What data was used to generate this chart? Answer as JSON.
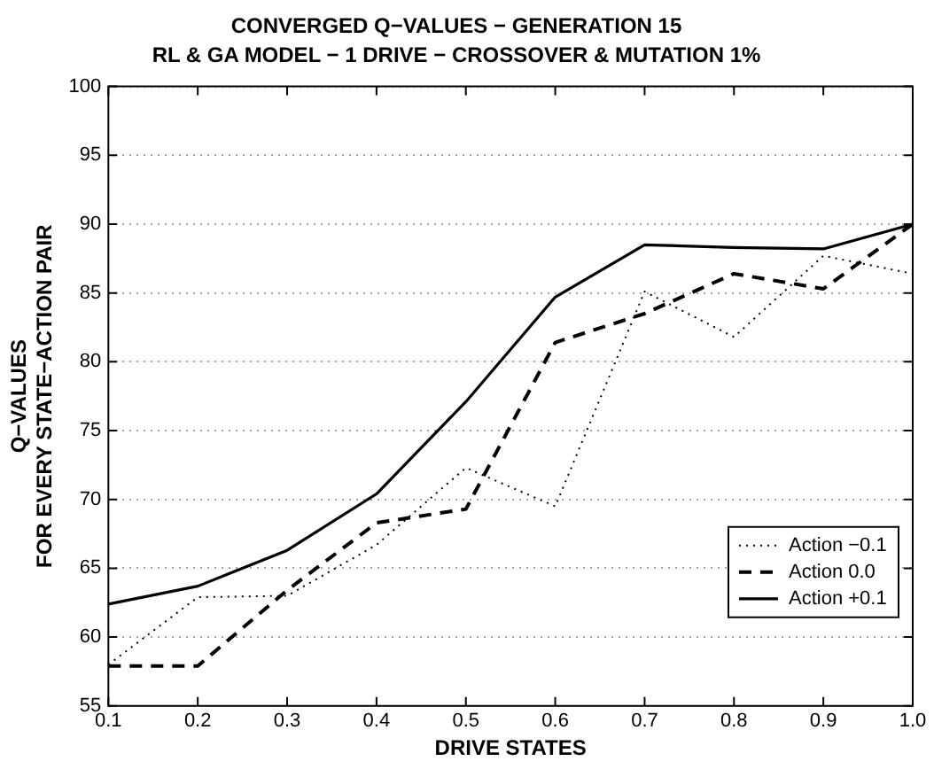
{
  "chart_data": {
    "type": "line",
    "title": "CONVERGED Q−VALUES − GENERATION 15",
    "subtitle": "RL & GA MODEL − 1 DRIVE − CROSSOVER & MUTATION 1%",
    "xlabel": "DRIVE STATES",
    "ylabel": "Q−VALUES\nFOR EVERY STATE−ACTION PAIR",
    "x": [
      0.1,
      0.2,
      0.3,
      0.4,
      0.5,
      0.6,
      0.7,
      0.8,
      0.9,
      1.0
    ],
    "series": [
      {
        "name": "Action −0.1",
        "color": "#000000",
        "line_style": "dotted",
        "values": [
          58.0,
          62.9,
          63.0,
          66.7,
          72.3,
          69.5,
          85.1,
          81.8,
          87.7,
          86.4
        ]
      },
      {
        "name": "Action 0.0",
        "color": "#000000",
        "line_style": "dashed",
        "values": [
          57.9,
          57.9,
          63.4,
          68.3,
          69.3,
          81.4,
          83.5,
          86.4,
          85.3,
          90.0
        ]
      },
      {
        "name": "Action +0.1",
        "color": "#000000",
        "line_style": "solid",
        "values": [
          62.4,
          63.7,
          66.3,
          70.4,
          77.1,
          84.7,
          88.5,
          88.3,
          88.2,
          90.0
        ]
      }
    ],
    "xlim": [
      0.1,
      1.0
    ],
    "xticks": [
      0.1,
      0.2,
      0.3,
      0.4,
      0.5,
      0.6,
      0.7,
      0.8,
      0.9,
      {
        "value": 1,
        "label": "1.0"
      }
    ],
    "ylim": [
      55,
      100
    ],
    "yticks": [
      55,
      60,
      65,
      70,
      75,
      80,
      85,
      90,
      95,
      100
    ],
    "grid": "y",
    "legend": "bottom right",
    "marker": "none"
  }
}
